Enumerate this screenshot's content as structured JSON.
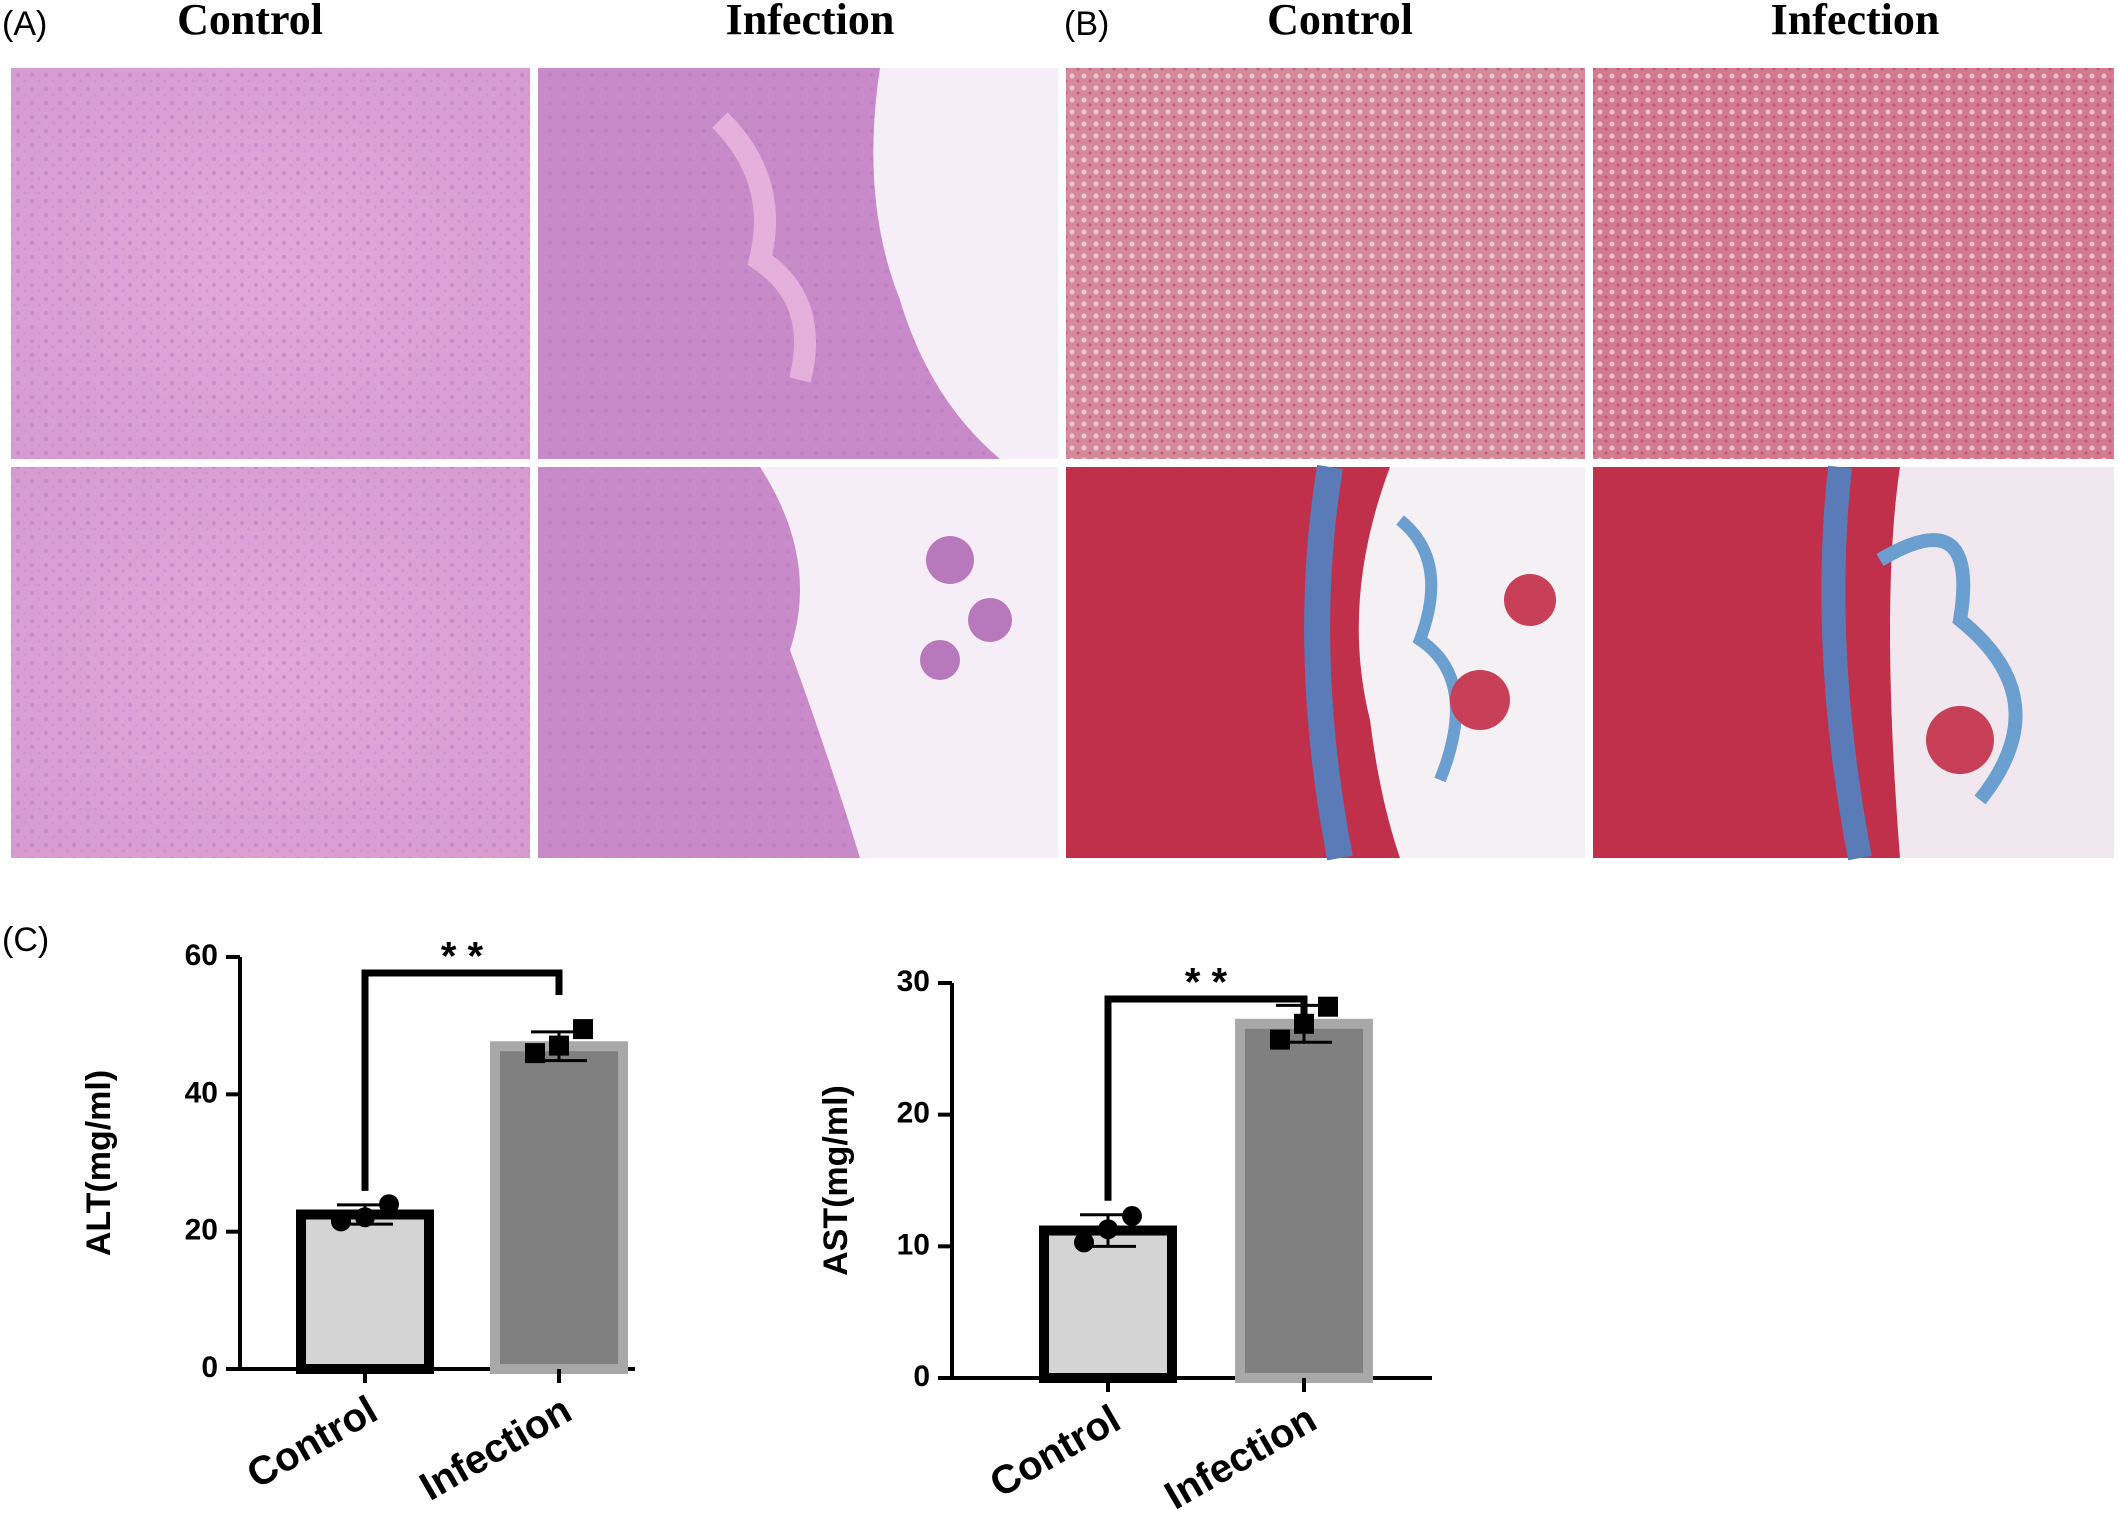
{
  "panels": {
    "a": "(A)",
    "b": "(B)",
    "c": "(C)"
  },
  "headers": {
    "a_control": "Control",
    "a_infection": "Infection",
    "b_control": "Control",
    "b_infection": "Infection"
  },
  "chart_data": [
    {
      "type": "bar",
      "ylabel": "ALT(mg/ml)",
      "categories": [
        "Control",
        "Infection"
      ],
      "values": [
        22.5,
        47
      ],
      "errors": [
        1.4,
        2.1
      ],
      "points": [
        [
          21.5,
          22.1,
          24
        ],
        [
          46,
          47.1,
          49.5
        ]
      ],
      "colors": [
        "#d4d4d4",
        "#808080"
      ],
      "edge_colors": [
        "#000000",
        "#a8a8a8"
      ],
      "significance": "* *",
      "ylim": [
        0,
        60
      ],
      "yticks": [
        0,
        20,
        40,
        60
      ]
    },
    {
      "type": "bar",
      "ylabel": "AST(mg/ml)",
      "categories": [
        "Control",
        "Infection"
      ],
      "values": [
        11.2,
        26.9
      ],
      "errors": [
        1.2,
        1.4
      ],
      "points": [
        [
          10.3,
          11.3,
          12.3
        ],
        [
          25.7,
          26.9,
          28.2
        ]
      ],
      "colors": [
        "#d4d4d4",
        "#808080"
      ],
      "edge_colors": [
        "#000000",
        "#a8a8a8"
      ],
      "significance": "* *",
      "ylim": [
        0,
        30
      ],
      "yticks": [
        0,
        10,
        20,
        30
      ]
    }
  ]
}
